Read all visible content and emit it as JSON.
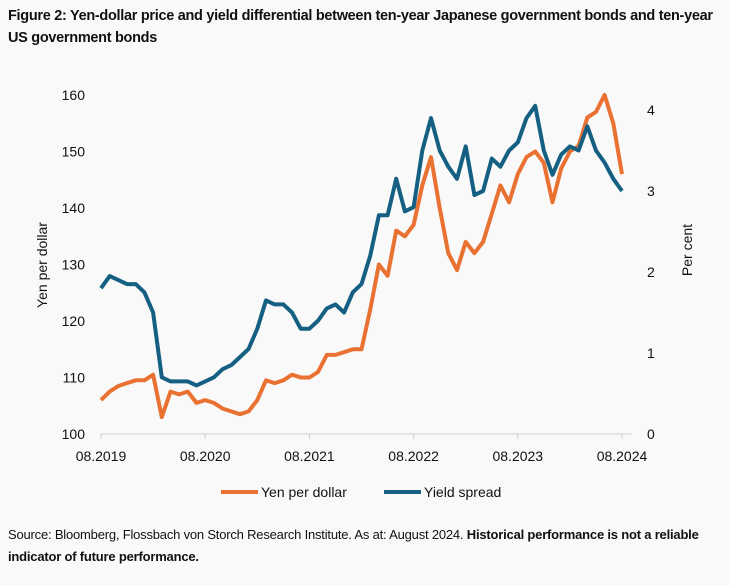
{
  "title": "Figure 2: Yen-dollar price and yield differential between ten-year Japanese government bonds and ten-year US government bonds",
  "source": {
    "plain": "Source: Bloomberg, Flossbach von Storch Research Institute. As at: August 2024. ",
    "bold": "Historical performance is not a reliable indicator of future performance."
  },
  "chart_data": {
    "type": "line",
    "title": "",
    "xlabel": "",
    "ylabel": "Yen per dollar",
    "y2label": "Per cent",
    "xlim": [
      "2019-08",
      "2024-08"
    ],
    "ylim": [
      100,
      160
    ],
    "y2lim": [
      0,
      4
    ],
    "x_ticks": [
      "08.2019",
      "08.2020",
      "08.2021",
      "08.2022",
      "08.2023",
      "08.2024"
    ],
    "y_ticks": [
      "100",
      "110",
      "120",
      "130",
      "140",
      "150",
      "160"
    ],
    "y2_ticks": [
      "0",
      "1",
      "2",
      "3",
      "4"
    ],
    "grid": false,
    "legend": "bottom",
    "x": [
      "2019-08",
      "2019-09",
      "2019-10",
      "2019-11",
      "2019-12",
      "2020-01",
      "2020-02",
      "2020-03",
      "2020-04",
      "2020-05",
      "2020-06",
      "2020-07",
      "2020-08",
      "2020-09",
      "2020-10",
      "2020-11",
      "2020-12",
      "2021-01",
      "2021-02",
      "2021-03",
      "2021-04",
      "2021-05",
      "2021-06",
      "2021-07",
      "2021-08",
      "2021-09",
      "2021-10",
      "2021-11",
      "2021-12",
      "2022-01",
      "2022-02",
      "2022-03",
      "2022-04",
      "2022-05",
      "2022-06",
      "2022-07",
      "2022-08",
      "2022-09",
      "2022-10",
      "2022-11",
      "2022-12",
      "2023-01",
      "2023-02",
      "2023-03",
      "2023-04",
      "2023-05",
      "2023-06",
      "2023-07",
      "2023-08",
      "2023-09",
      "2023-10",
      "2023-11",
      "2023-12",
      "2024-01",
      "2024-02",
      "2024-03",
      "2024-04",
      "2024-05",
      "2024-06",
      "2024-07",
      "2024-08"
    ],
    "series": [
      {
        "name": "Yen per dollar",
        "axis": "left",
        "color": "#E97132",
        "values": [
          106,
          107.5,
          108.5,
          109,
          109.5,
          109.5,
          110.5,
          103,
          107.5,
          107,
          107.5,
          105.5,
          106,
          105.5,
          104.5,
          104,
          103.5,
          104,
          106,
          109.5,
          109,
          109.5,
          110.5,
          110,
          110,
          111,
          114,
          114,
          114.5,
          115,
          115,
          122,
          130,
          128,
          136,
          135,
          137,
          144,
          149,
          140,
          132,
          129,
          134,
          132,
          134,
          139,
          144,
          141,
          146,
          149,
          150,
          148,
          141,
          147,
          150,
          151,
          156,
          157,
          160,
          155,
          146
        ]
      },
      {
        "name": "Yield spread",
        "axis": "right",
        "color": "#156082",
        "values": [
          1.8,
          1.95,
          1.9,
          1.85,
          1.85,
          1.75,
          1.5,
          0.7,
          0.65,
          0.65,
          0.65,
          0.6,
          0.65,
          0.7,
          0.8,
          0.85,
          0.95,
          1.05,
          1.3,
          1.65,
          1.6,
          1.6,
          1.5,
          1.3,
          1.3,
          1.4,
          1.55,
          1.6,
          1.5,
          1.75,
          1.85,
          2.2,
          2.7,
          2.7,
          3.15,
          2.75,
          2.8,
          3.5,
          3.9,
          3.5,
          3.3,
          3.15,
          3.55,
          2.95,
          3.0,
          3.4,
          3.3,
          3.5,
          3.6,
          3.9,
          4.05,
          3.5,
          3.2,
          3.45,
          3.55,
          3.5,
          3.8,
          3.5,
          3.35,
          3.15,
          3.0
        ]
      }
    ]
  }
}
